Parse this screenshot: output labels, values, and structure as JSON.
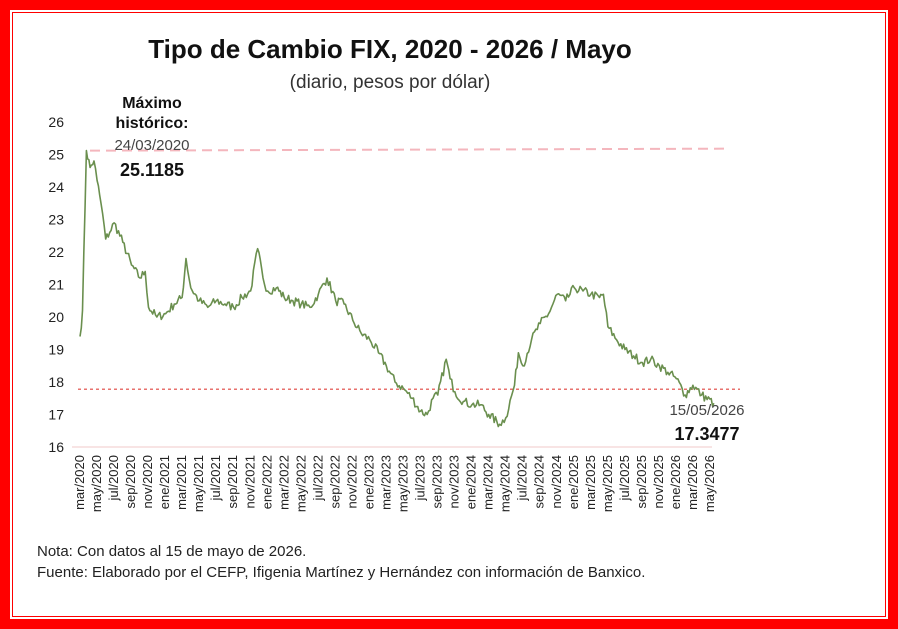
{
  "colors": {
    "border": "#ff0000",
    "series": "#6a8f4e",
    "max_line": "#f4b6bd",
    "last_line": "#e0443f",
    "gridline": "#f0c9c9"
  },
  "chart_data": {
    "type": "line",
    "title": "Tipo de Cambio FIX, 2020 - 2026 / Mayo",
    "subtitle": "(diario, pesos por dólar)",
    "ylim": [
      16,
      26
    ],
    "y_ticks": [
      "16",
      "17",
      "18",
      "19",
      "20",
      "21",
      "22",
      "23",
      "24",
      "25",
      "26"
    ],
    "x_tick_labels": [
      "mar/2020",
      "may/2020",
      "jul/2020",
      "sep/2020",
      "nov/2020",
      "ene/2021",
      "mar/2021",
      "may/2021",
      "jul/2021",
      "sep/2021",
      "nov/2021",
      "ene/2022",
      "mar/2022",
      "may/2022",
      "jul/2022",
      "sep/2022",
      "nov/2022",
      "ene/2023",
      "mar/2023",
      "may/2023",
      "jul/2023",
      "sep/2023",
      "nov/2023",
      "ene/2024",
      "mar/2024",
      "may/2024",
      "jul/2024",
      "sep/2024",
      "nov/2024",
      "ene/2025",
      "mar/2025",
      "may/2025",
      "jul/2025",
      "sep/2025",
      "nov/2025",
      "ene/2026",
      "mar/2026",
      "may/2026"
    ],
    "x": [
      "2020-03-01",
      "2020-03-10",
      "2020-03-24",
      "2020-04-06",
      "2020-04-20",
      "2020-05-01",
      "2020-05-15",
      "2020-06-01",
      "2020-06-15",
      "2020-07-01",
      "2020-08-01",
      "2020-09-01",
      "2020-10-01",
      "2020-10-20",
      "2020-11-01",
      "2020-12-01",
      "2021-01-01",
      "2021-02-01",
      "2021-03-01",
      "2021-03-15",
      "2021-04-01",
      "2021-05-01",
      "2021-06-01",
      "2021-07-01",
      "2021-08-01",
      "2021-09-01",
      "2021-10-01",
      "2021-11-01",
      "2021-11-26",
      "2021-12-15",
      "2022-01-01",
      "2022-02-01",
      "2022-03-01",
      "2022-04-01",
      "2022-05-01",
      "2022-06-01",
      "2022-07-01",
      "2022-08-01",
      "2022-09-01",
      "2022-10-01",
      "2022-11-01",
      "2022-12-01",
      "2023-01-01",
      "2023-02-01",
      "2023-03-01",
      "2023-04-01",
      "2023-05-01",
      "2023-06-01",
      "2023-07-01",
      "2023-07-25",
      "2023-08-15",
      "2023-09-01",
      "2023-10-01",
      "2023-10-15",
      "2023-11-01",
      "2023-12-01",
      "2024-01-01",
      "2024-02-01",
      "2024-03-01",
      "2024-04-09",
      "2024-05-01",
      "2024-06-01",
      "2024-06-15",
      "2024-07-01",
      "2024-08-01",
      "2024-09-01",
      "2024-10-01",
      "2024-11-01",
      "2024-12-01",
      "2025-01-01",
      "2025-02-01",
      "2025-03-01",
      "2025-04-01",
      "2025-04-15",
      "2025-05-01",
      "2025-06-01",
      "2025-07-01",
      "2025-08-01",
      "2025-09-01",
      "2025-10-01",
      "2025-11-01",
      "2025-12-01",
      "2026-01-01",
      "2026-02-01",
      "2026-03-01",
      "2026-04-01",
      "2026-05-15"
    ],
    "values": [
      19.4,
      20.2,
      25.1185,
      24.6,
      24.8,
      24.2,
      23.5,
      22.4,
      22.6,
      22.9,
      22.3,
      21.6,
      21.2,
      21.4,
      20.3,
      20.0,
      20.1,
      20.4,
      20.6,
      21.8,
      20.9,
      20.5,
      20.3,
      20.5,
      20.4,
      20.3,
      20.6,
      20.8,
      22.1,
      21.2,
      20.8,
      20.9,
      20.6,
      20.5,
      20.4,
      20.3,
      20.7,
      21.2,
      20.5,
      20.4,
      19.9,
      19.5,
      19.3,
      18.9,
      18.5,
      18.0,
      17.8,
      17.5,
      17.1,
      17.0,
      17.5,
      17.6,
      18.7,
      18.1,
      17.7,
      17.4,
      17.3,
      17.3,
      17.0,
      16.7,
      16.9,
      17.9,
      18.9,
      18.5,
      19.3,
      19.8,
      20.1,
      20.7,
      20.5,
      20.9,
      20.8,
      20.7,
      20.6,
      20.7,
      19.7,
      19.3,
      19.0,
      18.8,
      18.6,
      18.7,
      18.5,
      18.3,
      18.1,
      17.6,
      17.9,
      17.6,
      17.3477
    ],
    "reference_lines": [
      {
        "value": 25.1185,
        "style": "dashed"
      },
      {
        "value": 17.3477,
        "style": "dotted"
      }
    ],
    "annotations": {
      "max_label_line1": "Máximo",
      "max_label_line2": "histórico:",
      "max_date": "24/03/2020",
      "max_value": "25.1185",
      "last_date": "15/05/2026",
      "last_value": "17.3477"
    },
    "grid": false,
    "legend": "none"
  },
  "notes": {
    "nota": "Nota: Con datos al 15 de mayo de 2026.",
    "fuente": "Fuente: Elaborado por el CEFP, Ifigenia Martínez y Hernández con información de Banxico."
  }
}
